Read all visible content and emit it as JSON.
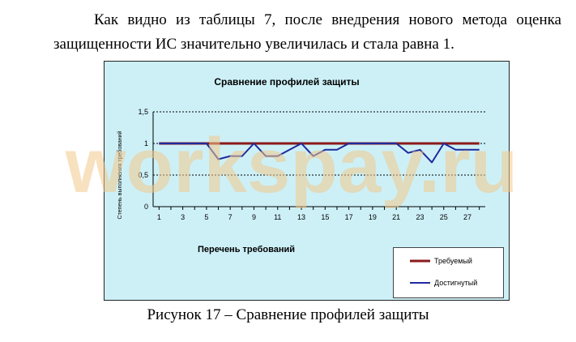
{
  "paragraph": {
    "text": "Как видно из таблицы 7, после внедрения нового метода оценка защищенности ИС значительно увеличилась и стала равна 1."
  },
  "caption": "Рисунок 17 – Сравнение профилей защиты",
  "watermark": "workspay.ru",
  "colors": {
    "chart_bg": "#cdf0f7",
    "required": "#8b1a1a",
    "achieved": "#1f2a9e",
    "watermark": "#f3c98a"
  },
  "chart_data": {
    "type": "line",
    "title": "Сравнение профилей защиты",
    "xlabel": "Перечень требований",
    "ylabel": "Степень выполнения требований",
    "x": [
      1,
      2,
      3,
      4,
      5,
      6,
      7,
      8,
      9,
      10,
      11,
      12,
      13,
      14,
      15,
      16,
      17,
      18,
      19,
      20,
      21,
      22,
      23,
      24,
      25,
      26,
      27,
      28
    ],
    "x_tick_labels": [
      "1",
      "3",
      "5",
      "7",
      "9",
      "11",
      "13",
      "15",
      "17",
      "19",
      "21",
      "23",
      "25",
      "27"
    ],
    "y_tick_labels": [
      "0",
      "0,5",
      "1",
      "1,5"
    ],
    "ylim": [
      0,
      1.5
    ],
    "grid": "horizontal dashed",
    "legend": "bottom-right",
    "series": [
      {
        "name": "Требуемый",
        "values": [
          1,
          1,
          1,
          1,
          1,
          1,
          1,
          1,
          1,
          1,
          1,
          1,
          1,
          1,
          1,
          1,
          1,
          1,
          1,
          1,
          1,
          1,
          1,
          1,
          1,
          1,
          1,
          1
        ]
      },
      {
        "name": "Достигнутый",
        "values": [
          1,
          1,
          1,
          1,
          1,
          0.75,
          0.8,
          0.8,
          1,
          0.8,
          0.8,
          0.9,
          1,
          0.8,
          0.9,
          0.9,
          1,
          1,
          1,
          1,
          1,
          0.85,
          0.9,
          0.7,
          1,
          0.9,
          0.9,
          0.9
        ]
      }
    ]
  }
}
